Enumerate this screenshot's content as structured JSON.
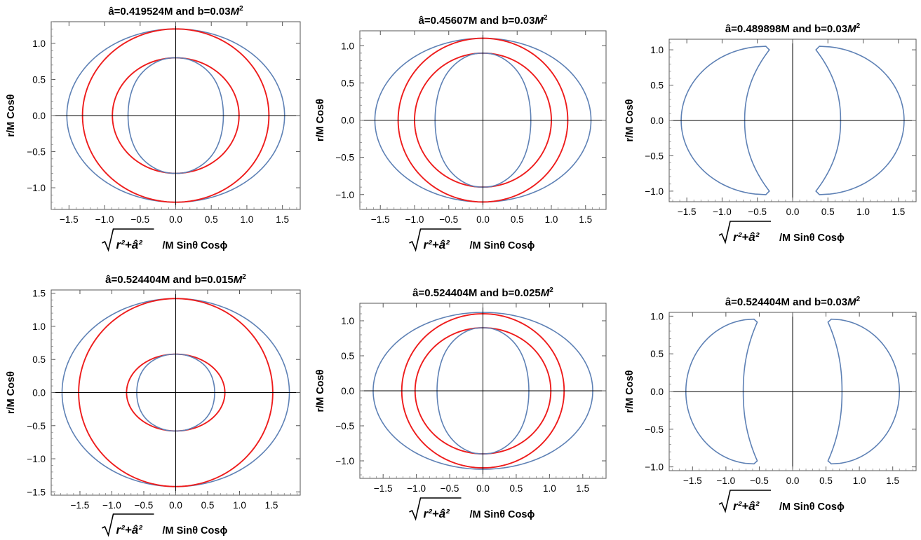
{
  "figure": {
    "colors": {
      "outer_curve": "#5e81b5",
      "inner_curve": "#ee1c1c",
      "axes": "#000000"
    },
    "panels": [
      {
        "title_prefix": "â=0.419524M and b=0.03",
        "title_unit": "M",
        "title_exp": "2",
        "ylabel": "r/M Cosθ",
        "xlabel_sym": "r²+â²",
        "xlabel_rest": "/M Sinθ Cosϕ"
      },
      {
        "title_prefix": "â=0.45607M and b=0.03",
        "title_unit": "M",
        "title_exp": "2",
        "ylabel": "r/M Cosθ",
        "xlabel_sym": "r²+â²",
        "xlabel_rest": "/M Sinθ Cosϕ"
      },
      {
        "title_prefix": "â=0.489898M and b=0.03",
        "title_unit": "M",
        "title_exp": "2",
        "ylabel": "r/M Cosθ",
        "xlabel_sym": "r²+â²",
        "xlabel_rest": "/M Sinθ Cosϕ"
      },
      {
        "title_prefix": "â=0.524404M and b=0.015",
        "title_unit": "M",
        "title_exp": "2",
        "ylabel": "r/M Cosθ",
        "xlabel_sym": "r²+â²",
        "xlabel_rest": "/M Sinθ Cosϕ"
      },
      {
        "title_prefix": "â=0.524404M and b=0.025",
        "title_unit": "M",
        "title_exp": "2",
        "ylabel": "r/M Cosθ",
        "xlabel_sym": "r²+â²",
        "xlabel_rest": "/M Sinθ Cosϕ"
      },
      {
        "title_prefix": "â=0.524404M and b=0.03",
        "title_unit": "M",
        "title_exp": "2",
        "ylabel": "r/M Cosθ",
        "xlabel_sym": "r²+â²",
        "xlabel_rest": "/M Sinθ Cosϕ"
      }
    ]
  },
  "chart_data": [
    {
      "type": "line",
      "xlim": [
        -1.75,
        1.75
      ],
      "ylim": [
        -1.3,
        1.3
      ],
      "xticks": [
        -1.5,
        -1.0,
        -0.5,
        0.0,
        0.5,
        1.0,
        1.5
      ],
      "yticks": [
        -1.0,
        -0.5,
        0.0,
        0.5,
        1.0
      ],
      "series": [
        {
          "shape": "ellipse",
          "rx": 1.53,
          "ry": 1.2,
          "color": "#5e81b5"
        },
        {
          "shape": "ellipse",
          "rx": 1.31,
          "ry": 1.2,
          "color": "#ee1c1c"
        },
        {
          "shape": "ellipse",
          "rx": 0.89,
          "ry": 0.8,
          "color": "#ee1c1c"
        },
        {
          "shape": "lens",
          "rx": 0.67,
          "ry": 0.8,
          "color": "#5e81b5"
        }
      ]
    },
    {
      "type": "line",
      "xlim": [
        -1.8,
        1.8
      ],
      "ylim": [
        -1.2,
        1.2
      ],
      "xticks": [
        -1.5,
        -1.0,
        -0.5,
        0.0,
        0.5,
        1.0,
        1.5
      ],
      "yticks": [
        -1.0,
        -0.5,
        0.0,
        0.5,
        1.0
      ],
      "series": [
        {
          "shape": "ellipse",
          "rx": 1.58,
          "ry": 1.1,
          "color": "#5e81b5"
        },
        {
          "shape": "ellipse",
          "rx": 1.24,
          "ry": 1.1,
          "color": "#ee1c1c"
        },
        {
          "shape": "ellipse",
          "rx": 1.0,
          "ry": 0.9,
          "color": "#ee1c1c"
        },
        {
          "shape": "lens",
          "rx": 0.7,
          "ry": 0.9,
          "color": "#5e81b5"
        }
      ]
    },
    {
      "type": "line",
      "xlim": [
        -1.75,
        1.75
      ],
      "ylim": [
        -1.15,
        1.15
      ],
      "xticks": [
        -1.5,
        -1.0,
        -0.5,
        0.0,
        0.5,
        1.0,
        1.5
      ],
      "yticks": [
        -1.0,
        -0.5,
        0.0,
        0.5,
        1.0
      ],
      "series": [
        {
          "shape": "crescent",
          "outer": 1.58,
          "inner": 0.68,
          "tipx": 0.33,
          "tipy": 1.0,
          "h": 1.05,
          "color": "#5e81b5"
        }
      ]
    },
    {
      "type": "line",
      "xlim": [
        -1.95,
        1.95
      ],
      "ylim": [
        -1.55,
        1.55
      ],
      "xticks": [
        -1.5,
        -1.0,
        -0.5,
        0.0,
        0.5,
        1.0,
        1.5
      ],
      "yticks": [
        -1.5,
        -1.0,
        -0.5,
        0.0,
        0.5,
        1.0,
        1.5
      ],
      "series": [
        {
          "shape": "ellipse",
          "rx": 1.78,
          "ry": 1.42,
          "color": "#5e81b5"
        },
        {
          "shape": "ellipse",
          "rx": 1.52,
          "ry": 1.42,
          "color": "#ee1c1c"
        },
        {
          "shape": "ellipse",
          "rx": 0.77,
          "ry": 0.58,
          "color": "#ee1c1c"
        },
        {
          "shape": "lens",
          "rx": 0.61,
          "ry": 0.58,
          "color": "#5e81b5"
        }
      ]
    },
    {
      "type": "line",
      "xlim": [
        -1.85,
        1.85
      ],
      "ylim": [
        -1.25,
        1.25
      ],
      "xticks": [
        -1.5,
        -1.0,
        -0.5,
        0.0,
        0.5,
        1.0,
        1.5
      ],
      "yticks": [
        -1.0,
        -0.5,
        0.0,
        0.5,
        1.0
      ],
      "series": [
        {
          "shape": "ellipse",
          "rx": 1.65,
          "ry": 1.12,
          "color": "#5e81b5"
        },
        {
          "shape": "ellipse",
          "rx": 1.22,
          "ry": 1.1,
          "color": "#ee1c1c"
        },
        {
          "shape": "ellipse",
          "rx": 1.02,
          "ry": 0.9,
          "color": "#ee1c1c"
        },
        {
          "shape": "lens",
          "rx": 0.69,
          "ry": 0.9,
          "color": "#5e81b5"
        }
      ]
    },
    {
      "type": "line",
      "xlim": [
        -1.85,
        1.85
      ],
      "ylim": [
        -1.05,
        1.05
      ],
      "xticks": [
        -1.5,
        -1.0,
        -0.5,
        0.0,
        0.5,
        1.0,
        1.5
      ],
      "yticks": [
        -1.0,
        -0.5,
        0.0,
        0.5,
        1.0
      ],
      "series": [
        {
          "shape": "crescent",
          "outer": 1.6,
          "inner": 0.74,
          "tipx": 0.53,
          "tipy": 0.92,
          "h": 0.96,
          "color": "#5e81b5"
        }
      ]
    }
  ]
}
